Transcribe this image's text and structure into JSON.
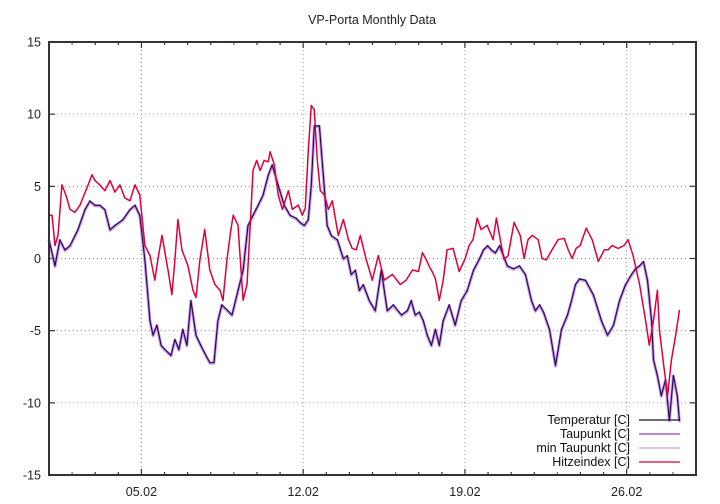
{
  "chart_data": {
    "type": "line",
    "title": "VP-Porta Monthly Data",
    "xlabel": "",
    "ylabel": "",
    "xlim_days": [
      1,
      29
    ],
    "ylim": [
      -15,
      15
    ],
    "yticks": [
      -15,
      -10,
      -5,
      0,
      5,
      10,
      15
    ],
    "ytick_labels": [
      "-15",
      "-10",
      "-5",
      "0",
      "5",
      "10",
      "15"
    ],
    "xticks_days": [
      5,
      12,
      19,
      26
    ],
    "xtick_labels": [
      "05.02",
      "12.02",
      "19.02",
      "26.02"
    ],
    "minor_xticks_days": [
      2,
      3,
      4,
      6,
      7,
      8,
      9,
      10,
      11,
      13,
      14,
      15,
      16,
      17,
      18,
      20,
      21,
      22,
      23,
      24,
      25,
      27,
      28
    ],
    "grid": true,
    "legend_position": "bottom-right",
    "series": [
      {
        "name": "Temperatur [C]",
        "color": "#1a0a3a",
        "x_days": [
          1.0,
          1.26,
          1.47,
          1.69,
          1.91,
          2.25,
          2.56,
          2.77,
          2.99,
          3.2,
          3.42,
          3.64,
          3.85,
          4.2,
          4.5,
          4.72,
          4.93,
          5.15,
          5.37,
          5.5,
          5.67,
          5.85,
          6.02,
          6.28,
          6.45,
          6.62,
          6.79,
          6.97,
          7.14,
          7.36,
          7.57,
          7.79,
          7.96,
          8.14,
          8.31,
          8.48,
          8.74,
          8.92,
          9.18,
          9.4,
          9.61,
          9.83,
          10.05,
          10.26,
          10.49,
          10.66,
          10.92,
          11.18,
          11.44,
          11.7,
          11.87,
          12.05,
          12.22,
          12.35,
          12.48,
          12.7,
          12.87,
          13.04,
          13.22,
          13.48,
          13.74,
          13.91,
          14.08,
          14.26,
          14.43,
          14.6,
          14.86,
          15.12,
          15.38,
          15.64,
          15.9,
          16.25,
          16.51,
          16.68,
          16.85,
          17.03,
          17.2,
          17.37,
          17.55,
          17.72,
          17.89,
          18.06,
          18.32,
          18.58,
          18.84,
          19.1,
          19.37,
          19.63,
          19.8,
          19.98,
          20.15,
          20.32,
          20.5,
          20.67,
          20.84,
          21.1,
          21.36,
          21.62,
          21.88,
          22.05,
          22.23,
          22.4,
          22.66,
          22.92,
          23.18,
          23.44,
          23.61,
          23.78,
          23.96,
          24.22,
          24.56,
          24.91,
          25.17,
          25.43,
          25.69,
          25.95,
          26.21,
          26.38,
          26.56,
          26.73,
          26.9,
          27.08,
          27.16,
          27.33,
          27.5,
          27.68,
          27.85,
          28.02,
          28.19,
          28.28
        ],
        "values": [
          1.3,
          -0.5,
          1.3,
          0.6,
          0.9,
          2.0,
          3.4,
          4.0,
          3.7,
          3.7,
          3.4,
          2.0,
          2.3,
          2.7,
          3.4,
          3.7,
          3.0,
          -0.1,
          -4.3,
          -5.3,
          -4.6,
          -6.0,
          -6.3,
          -6.7,
          -5.6,
          -6.3,
          -4.9,
          -6.0,
          -2.9,
          -5.3,
          -6.0,
          -6.7,
          -7.2,
          -7.2,
          -4.3,
          -3.2,
          -3.6,
          -3.9,
          -2.2,
          -0.8,
          2.3,
          3.0,
          3.7,
          4.4,
          5.8,
          6.5,
          5.1,
          3.7,
          3.0,
          2.8,
          2.5,
          2.3,
          2.7,
          5.1,
          9.2,
          9.2,
          5.8,
          2.3,
          1.6,
          1.3,
          0.0,
          0.2,
          -1.1,
          -0.8,
          -2.2,
          -1.8,
          -2.9,
          -3.6,
          -0.8,
          -3.6,
          -3.2,
          -3.9,
          -3.6,
          -2.9,
          -3.9,
          -3.7,
          -4.3,
          -5.3,
          -6.0,
          -4.9,
          -6.0,
          -4.3,
          -3.2,
          -4.6,
          -2.9,
          -2.2,
          -0.8,
          0.0,
          0.6,
          0.9,
          0.6,
          0.4,
          0.9,
          0.2,
          -0.5,
          -0.7,
          -0.5,
          -1.1,
          -2.9,
          -3.6,
          -3.2,
          -3.7,
          -4.9,
          -7.4,
          -4.9,
          -3.9,
          -2.9,
          -1.8,
          -1.4,
          -1.5,
          -2.5,
          -4.3,
          -5.3,
          -4.6,
          -2.9,
          -1.8,
          -1.1,
          -0.7,
          -0.5,
          -0.2,
          -1.5,
          -4.3,
          -7.0,
          -8.1,
          -9.5,
          -8.4,
          -11.2,
          -8.1,
          -9.5,
          -11.2,
          -8.8,
          -8.1,
          -9.1,
          -9.5,
          -10.5
        ]
      },
      {
        "name": "Taupunkt [C]",
        "color": "#9b3fd0",
        "same_as": "Temperatur [C]"
      },
      {
        "name": "min Taupunkt [C]",
        "color": "#c6a0e8",
        "same_as": "Temperatur [C]"
      },
      {
        "name": "Hitzeindex [C]",
        "color": "#e0003c",
        "x_days": [
          1.0,
          1.13,
          1.26,
          1.39,
          1.56,
          1.73,
          1.91,
          2.12,
          2.34,
          2.69,
          2.86,
          2.99,
          3.2,
          3.42,
          3.64,
          3.85,
          4.07,
          4.28,
          4.5,
          4.72,
          4.93,
          5.15,
          5.37,
          5.58,
          5.71,
          5.89,
          6.15,
          6.32,
          6.45,
          6.58,
          6.75,
          7.01,
          7.23,
          7.36,
          7.53,
          7.74,
          7.96,
          8.18,
          8.4,
          8.53,
          8.7,
          8.87,
          8.97,
          9.18,
          9.31,
          9.4,
          9.57,
          9.7,
          9.83,
          9.99,
          10.14,
          10.31,
          10.49,
          10.57,
          10.75,
          10.92,
          11.1,
          11.36,
          11.53,
          11.79,
          11.96,
          12.09,
          12.22,
          12.35,
          12.48,
          12.61,
          12.74,
          12.92,
          13.09,
          13.26,
          13.52,
          13.74,
          13.96,
          14.12,
          14.3,
          14.47,
          14.73,
          14.99,
          15.25,
          15.51,
          15.86,
          16.2,
          16.46,
          16.73,
          16.99,
          17.16,
          17.33,
          17.5,
          17.55,
          17.72,
          17.89,
          18.06,
          18.23,
          18.49,
          18.75,
          19.01,
          19.18,
          19.35,
          19.53,
          19.7,
          19.96,
          20.22,
          20.36,
          20.53,
          20.7,
          20.87,
          21.13,
          21.39,
          21.56,
          21.73,
          21.91,
          22.17,
          22.34,
          22.52,
          22.77,
          23.03,
          23.29,
          23.47,
          23.64,
          23.81,
          23.99,
          24.25,
          24.51,
          24.77,
          25.03,
          25.2,
          25.37,
          25.63,
          25.89,
          26.06,
          26.28,
          26.56,
          26.82,
          26.98,
          27.16,
          27.33,
          27.42,
          27.6,
          27.77,
          27.94,
          28.12,
          28.28
        ],
        "values": [
          3.0,
          3.0,
          0.9,
          1.6,
          5.1,
          4.4,
          3.4,
          3.2,
          3.7,
          5.1,
          5.8,
          5.4,
          5.1,
          4.7,
          5.4,
          4.6,
          5.1,
          4.2,
          4.0,
          5.1,
          4.4,
          0.9,
          0.2,
          -1.5,
          -0.1,
          1.6,
          -0.8,
          -2.5,
          -0.1,
          2.7,
          0.6,
          -0.5,
          -2.2,
          -2.7,
          -0.1,
          2.0,
          -0.8,
          -1.8,
          -2.2,
          -2.9,
          -0.1,
          2.0,
          3.0,
          2.3,
          -0.8,
          -2.9,
          -1.8,
          2.0,
          6.1,
          6.8,
          6.1,
          6.8,
          6.7,
          7.4,
          6.5,
          4.4,
          3.4,
          4.7,
          3.4,
          3.7,
          3.0,
          3.5,
          7.5,
          10.6,
          10.3,
          6.8,
          4.7,
          4.4,
          3.4,
          4.0,
          1.6,
          2.7,
          1.3,
          0.7,
          0.6,
          1.6,
          -0.1,
          -1.5,
          0.2,
          -1.5,
          -1.1,
          -1.8,
          -1.5,
          -0.8,
          -0.9,
          0.4,
          -0.1,
          -0.7,
          -0.8,
          -1.4,
          -2.9,
          -1.5,
          0.6,
          0.7,
          -0.9,
          0.0,
          0.9,
          1.3,
          2.8,
          2.0,
          2.3,
          1.3,
          2.8,
          1.3,
          -0.1,
          0.2,
          2.5,
          1.6,
          0.0,
          1.3,
          1.6,
          1.3,
          0.0,
          -0.1,
          0.6,
          1.3,
          1.4,
          0.6,
          0.0,
          0.7,
          0.9,
          2.1,
          1.3,
          -0.2,
          0.6,
          0.6,
          0.9,
          0.7,
          0.9,
          1.3,
          0.2,
          -1.8,
          -4.3,
          -6.0,
          -4.3,
          -2.2,
          -5.0,
          -7.4,
          -9.5,
          -7.0,
          -5.3,
          -3.6,
          -1.8,
          -2.9,
          -3.6
        ]
      }
    ]
  }
}
